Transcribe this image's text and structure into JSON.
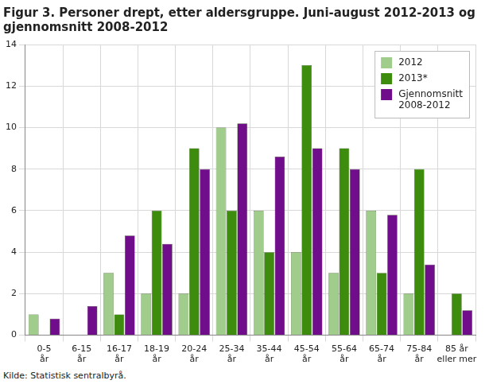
{
  "chart_data": {
    "type": "bar",
    "title": [
      "Figur 3. Personer drept, etter aldersgruppe. Juni-august 2012-2013 og",
      "gjennomsnitt 2008-2012"
    ],
    "source": "Kilde: Statistisk sentralbyrå.",
    "categories": [
      [
        "0-5",
        "år"
      ],
      [
        "6-15",
        "år"
      ],
      [
        "16-17",
        "år"
      ],
      [
        "18-19",
        "år"
      ],
      [
        "20-24",
        "år"
      ],
      [
        "25-34",
        "år"
      ],
      [
        "35-44",
        "år"
      ],
      [
        "45-54",
        "år"
      ],
      [
        "55-64",
        "år"
      ],
      [
        "65-74",
        "år"
      ],
      [
        "75-84",
        "år"
      ],
      [
        "85 år",
        "eller mer"
      ]
    ],
    "series": [
      {
        "name": "2012",
        "color": "#a0cc8c",
        "values": [
          1,
          0,
          3,
          2,
          2,
          10,
          6,
          4,
          3,
          6,
          2,
          0
        ]
      },
      {
        "name": "2013*",
        "color": "#3d8c0e",
        "values": [
          0,
          0,
          1,
          6,
          9,
          6,
          4,
          13,
          9,
          3,
          8,
          2
        ]
      },
      {
        "name": "Gjennomsnitt 2008-2012",
        "color": "#700d8a",
        "values": [
          0.8,
          1.4,
          4.8,
          4.4,
          8,
          10.2,
          8.6,
          9,
          8,
          5.8,
          3.4,
          1.2
        ]
      }
    ],
    "ylim": [
      0,
      14
    ],
    "yticks": [
      0,
      2,
      4,
      6,
      8,
      10,
      12,
      14
    ],
    "grid": true,
    "legend": "upper right"
  }
}
